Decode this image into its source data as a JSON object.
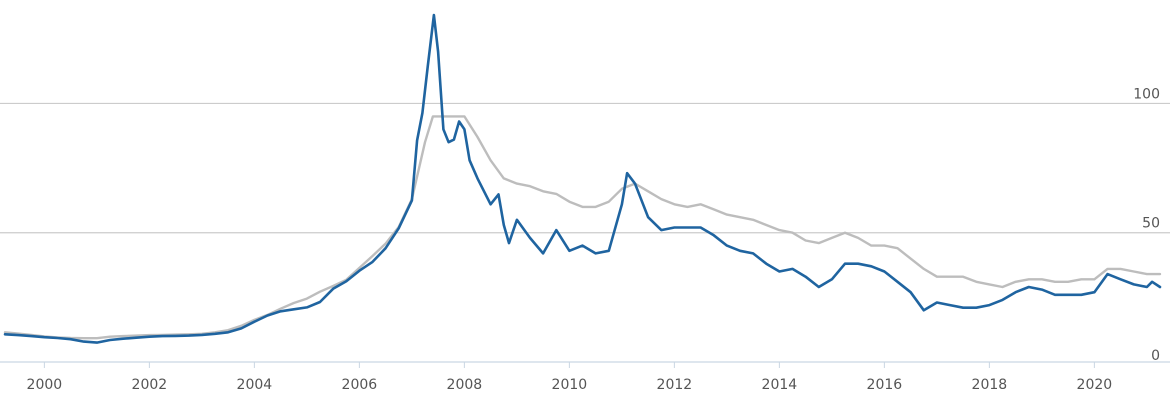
{
  "chart_data": {
    "type": "line",
    "title": "",
    "xlabel": "",
    "ylabel": "",
    "xlim": [
      1999.25,
      2021.25
    ],
    "ylim": [
      0,
      140
    ],
    "y_ticks": [
      {
        "value": 0,
        "label": "0"
      },
      {
        "value": 50,
        "label": "50"
      },
      {
        "value": 100,
        "label": "100"
      }
    ],
    "x_ticks": [
      {
        "value": 2000,
        "label": "2000"
      },
      {
        "value": 2002,
        "label": "2002"
      },
      {
        "value": 2004,
        "label": "2004"
      },
      {
        "value": 2006,
        "label": "2006"
      },
      {
        "value": 2008,
        "label": "2008"
      },
      {
        "value": 2010,
        "label": "2010"
      },
      {
        "value": 2012,
        "label": "2012"
      },
      {
        "value": 2014,
        "label": "2014"
      },
      {
        "value": 2016,
        "label": "2016"
      },
      {
        "value": 2018,
        "label": "2018"
      },
      {
        "value": 2020,
        "label": "2020"
      }
    ],
    "grid": true,
    "legend": "none",
    "series": [
      {
        "color": "#1f64a0",
        "points": [
          [
            1999.25,
            10.7
          ],
          [
            1999.5,
            10.4
          ],
          [
            1999.75,
            10.0
          ],
          [
            2000.0,
            9.6
          ],
          [
            2000.25,
            9.3
          ],
          [
            2000.5,
            8.8
          ],
          [
            2000.75,
            7.9
          ],
          [
            2001.0,
            7.5
          ],
          [
            2001.25,
            8.5
          ],
          [
            2001.5,
            9.0
          ],
          [
            2001.75,
            9.4
          ],
          [
            2002.0,
            9.8
          ],
          [
            2002.25,
            10.0
          ],
          [
            2002.5,
            10.1
          ],
          [
            2002.75,
            10.2
          ],
          [
            2003.0,
            10.5
          ],
          [
            2003.25,
            10.9
          ],
          [
            2003.5,
            11.5
          ],
          [
            2003.75,
            13.0
          ],
          [
            2004.0,
            15.6
          ],
          [
            2004.25,
            18.0
          ],
          [
            2004.5,
            19.6
          ],
          [
            2004.75,
            20.4
          ],
          [
            2005.0,
            21.1
          ],
          [
            2005.25,
            23.2
          ],
          [
            2005.5,
            28.3
          ],
          [
            2005.75,
            31.2
          ],
          [
            2006.0,
            35.3
          ],
          [
            2006.25,
            38.7
          ],
          [
            2006.5,
            44.0
          ],
          [
            2006.75,
            51.7
          ],
          [
            2007.0,
            62.5
          ],
          [
            2007.1,
            85.7
          ],
          [
            2007.2,
            96.3
          ],
          [
            2007.3,
            113.8
          ],
          [
            2007.42,
            134.2
          ],
          [
            2007.5,
            120.0
          ],
          [
            2007.6,
            90.0
          ],
          [
            2007.7,
            85.0
          ],
          [
            2007.8,
            86.0
          ],
          [
            2007.9,
            93.0
          ],
          [
            2008.0,
            90.0
          ],
          [
            2008.1,
            78.0
          ],
          [
            2008.25,
            71.0
          ],
          [
            2008.5,
            61.0
          ],
          [
            2008.65,
            64.8
          ],
          [
            2008.75,
            53.0
          ],
          [
            2008.85,
            46.0
          ],
          [
            2009.0,
            55.0
          ],
          [
            2009.25,
            48.0
          ],
          [
            2009.5,
            42.0
          ],
          [
            2009.75,
            51.0
          ],
          [
            2010.0,
            43.0
          ],
          [
            2010.25,
            45.0
          ],
          [
            2010.5,
            42.0
          ],
          [
            2010.75,
            43.0
          ],
          [
            2011.0,
            61.0
          ],
          [
            2011.1,
            73.0
          ],
          [
            2011.25,
            69.0
          ],
          [
            2011.5,
            56.0
          ],
          [
            2011.75,
            51.0
          ],
          [
            2012.0,
            52.0
          ],
          [
            2012.25,
            52.0
          ],
          [
            2012.5,
            52.0
          ],
          [
            2012.75,
            49.0
          ],
          [
            2013.0,
            45.0
          ],
          [
            2013.25,
            43.0
          ],
          [
            2013.5,
            42.0
          ],
          [
            2013.75,
            38.0
          ],
          [
            2014.0,
            35.0
          ],
          [
            2014.25,
            36.0
          ],
          [
            2014.5,
            33.0
          ],
          [
            2014.75,
            29.0
          ],
          [
            2015.0,
            32.0
          ],
          [
            2015.25,
            38.0
          ],
          [
            2015.5,
            38.0
          ],
          [
            2015.75,
            37.0
          ],
          [
            2016.0,
            35.0
          ],
          [
            2016.25,
            31.0
          ],
          [
            2016.5,
            27.0
          ],
          [
            2016.75,
            20.0
          ],
          [
            2017.0,
            23.0
          ],
          [
            2017.25,
            22.0
          ],
          [
            2017.5,
            21.0
          ],
          [
            2017.75,
            21.0
          ],
          [
            2018.0,
            22.0
          ],
          [
            2018.25,
            24.0
          ],
          [
            2018.5,
            27.0
          ],
          [
            2018.75,
            29.0
          ],
          [
            2019.0,
            28.0
          ],
          [
            2019.25,
            26.0
          ],
          [
            2019.5,
            26.0
          ],
          [
            2019.75,
            26.0
          ],
          [
            2020.0,
            27.0
          ],
          [
            2020.25,
            34.0
          ],
          [
            2020.5,
            32.0
          ],
          [
            2020.75,
            30.0
          ],
          [
            2021.0,
            29.0
          ],
          [
            2021.1,
            31.0
          ],
          [
            2021.25,
            29.0
          ]
        ]
      },
      {
        "color": "#bdbdbd",
        "points": [
          [
            1999.25,
            11.5
          ],
          [
            1999.5,
            11.0
          ],
          [
            1999.75,
            10.5
          ],
          [
            2000.0,
            9.9
          ],
          [
            2000.25,
            9.5
          ],
          [
            2000.5,
            9.3
          ],
          [
            2000.75,
            9.2
          ],
          [
            2001.0,
            9.2
          ],
          [
            2001.25,
            9.8
          ],
          [
            2001.5,
            10.0
          ],
          [
            2001.75,
            10.2
          ],
          [
            2002.0,
            10.4
          ],
          [
            2002.25,
            10.5
          ],
          [
            2002.5,
            10.6
          ],
          [
            2002.75,
            10.7
          ],
          [
            2003.0,
            10.9
          ],
          [
            2003.25,
            11.5
          ],
          [
            2003.5,
            12.3
          ],
          [
            2003.75,
            14.0
          ],
          [
            2004.0,
            16.3
          ],
          [
            2004.25,
            18.2
          ],
          [
            2004.5,
            20.6
          ],
          [
            2004.75,
            22.8
          ],
          [
            2005.0,
            24.5
          ],
          [
            2005.25,
            27.2
          ],
          [
            2005.5,
            29.4
          ],
          [
            2005.75,
            31.8
          ],
          [
            2006.0,
            36.4
          ],
          [
            2006.25,
            41.0
          ],
          [
            2006.5,
            45.8
          ],
          [
            2006.75,
            52.2
          ],
          [
            2007.0,
            63.0
          ],
          [
            2007.25,
            85.0
          ],
          [
            2007.4,
            95.0
          ],
          [
            2008.0,
            95.0
          ],
          [
            2008.25,
            87.0
          ],
          [
            2008.5,
            78.0
          ],
          [
            2008.75,
            71.0
          ],
          [
            2009.0,
            69.0
          ],
          [
            2009.25,
            68.0
          ],
          [
            2009.5,
            66.0
          ],
          [
            2009.75,
            65.0
          ],
          [
            2010.0,
            62.0
          ],
          [
            2010.25,
            60.0
          ],
          [
            2010.5,
            60.0
          ],
          [
            2010.75,
            62.0
          ],
          [
            2011.0,
            67.0
          ],
          [
            2011.25,
            69.0
          ],
          [
            2011.5,
            66.0
          ],
          [
            2011.75,
            63.0
          ],
          [
            2012.0,
            61.0
          ],
          [
            2012.25,
            60.0
          ],
          [
            2012.5,
            61.0
          ],
          [
            2012.75,
            59.0
          ],
          [
            2013.0,
            57.0
          ],
          [
            2013.25,
            56.0
          ],
          [
            2013.5,
            55.0
          ],
          [
            2013.75,
            53.0
          ],
          [
            2014.0,
            51.0
          ],
          [
            2014.25,
            50.0
          ],
          [
            2014.5,
            47.0
          ],
          [
            2014.75,
            46.0
          ],
          [
            2015.0,
            48.0
          ],
          [
            2015.25,
            50.0
          ],
          [
            2015.5,
            48.0
          ],
          [
            2015.75,
            45.0
          ],
          [
            2016.0,
            45.0
          ],
          [
            2016.25,
            44.0
          ],
          [
            2016.5,
            40.0
          ],
          [
            2016.75,
            36.0
          ],
          [
            2017.0,
            33.0
          ],
          [
            2017.25,
            33.0
          ],
          [
            2017.5,
            33.0
          ],
          [
            2017.75,
            31.0
          ],
          [
            2018.0,
            30.0
          ],
          [
            2018.25,
            29.0
          ],
          [
            2018.5,
            31.0
          ],
          [
            2018.75,
            32.0
          ],
          [
            2019.0,
            32.0
          ],
          [
            2019.25,
            31.0
          ],
          [
            2019.5,
            31.0
          ],
          [
            2019.75,
            32.0
          ],
          [
            2020.0,
            32.0
          ],
          [
            2020.25,
            36.0
          ],
          [
            2020.5,
            36.0
          ],
          [
            2020.75,
            35.0
          ],
          [
            2021.0,
            34.0
          ],
          [
            2021.25,
            34.0
          ]
        ]
      }
    ]
  }
}
